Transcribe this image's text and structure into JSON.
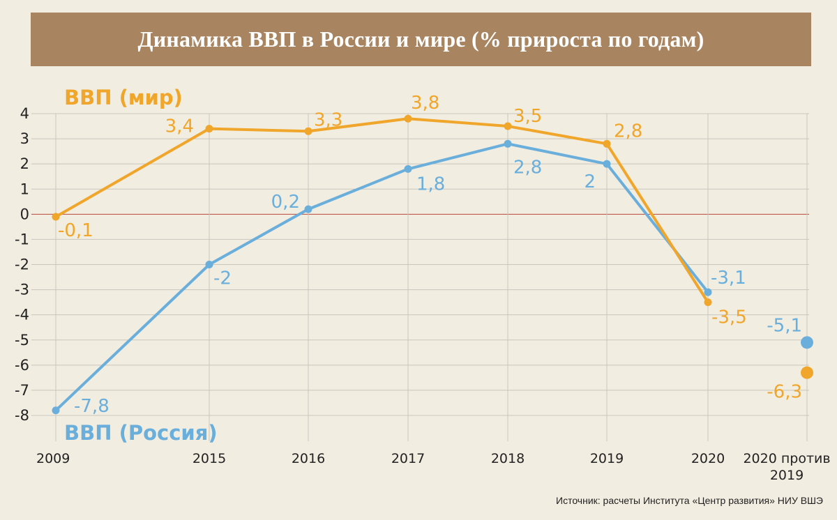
{
  "title": "Динамика ВВП в России и мире (% прироста по годам)",
  "source": "Источник: расчеты Института «Центр развития» НИУ ВШЭ",
  "colors": {
    "world": "#f0a52b",
    "russia": "#6aaedc",
    "zero_line": "#b8463a",
    "grid": "#c9c6bd",
    "axis_text": "#222222",
    "title_bg": "#a88560"
  },
  "chart_data": {
    "type": "line",
    "title": "Динамика ВВП в России и мире (% прироста по годам)",
    "xlabel": "",
    "ylabel": "",
    "ylim": [
      -8,
      4
    ],
    "yticks": [
      "4",
      "3",
      "2",
      "1",
      "0",
      "-1",
      "-2",
      "-3",
      "-4",
      "-5",
      "-6",
      "-7",
      "-8"
    ],
    "yticks_values": [
      4,
      3,
      2,
      1,
      0,
      -1,
      -2,
      -3,
      -4,
      -5,
      -6,
      -7,
      -8
    ],
    "categories": [
      "2009",
      "2015",
      "2016",
      "2017",
      "2018",
      "2019",
      "2020"
    ],
    "extra_category": [
      "2020 против",
      "2019"
    ],
    "series": [
      {
        "name": "ВВП (мир)",
        "color": "#f0a52b",
        "values": [
          -0.1,
          3.4,
          3.3,
          3.8,
          3.5,
          2.8,
          -3.5
        ],
        "labels": [
          "-0,1",
          "3,4",
          "3,3",
          "3,8",
          "3,5",
          "2,8",
          "-3,5"
        ],
        "extra_value": -6.3,
        "extra_label": "-6,3"
      },
      {
        "name": "ВВП (Россия)",
        "color": "#6aaedc",
        "values": [
          -7.8,
          -2,
          0.2,
          1.8,
          2.8,
          2,
          -3.1
        ],
        "labels": [
          "-7,8",
          "-2",
          "0,2",
          "1,8",
          "2,8",
          "2",
          "-3,1"
        ],
        "extra_value": -5.1,
        "extra_label": "-5,1"
      }
    ]
  }
}
